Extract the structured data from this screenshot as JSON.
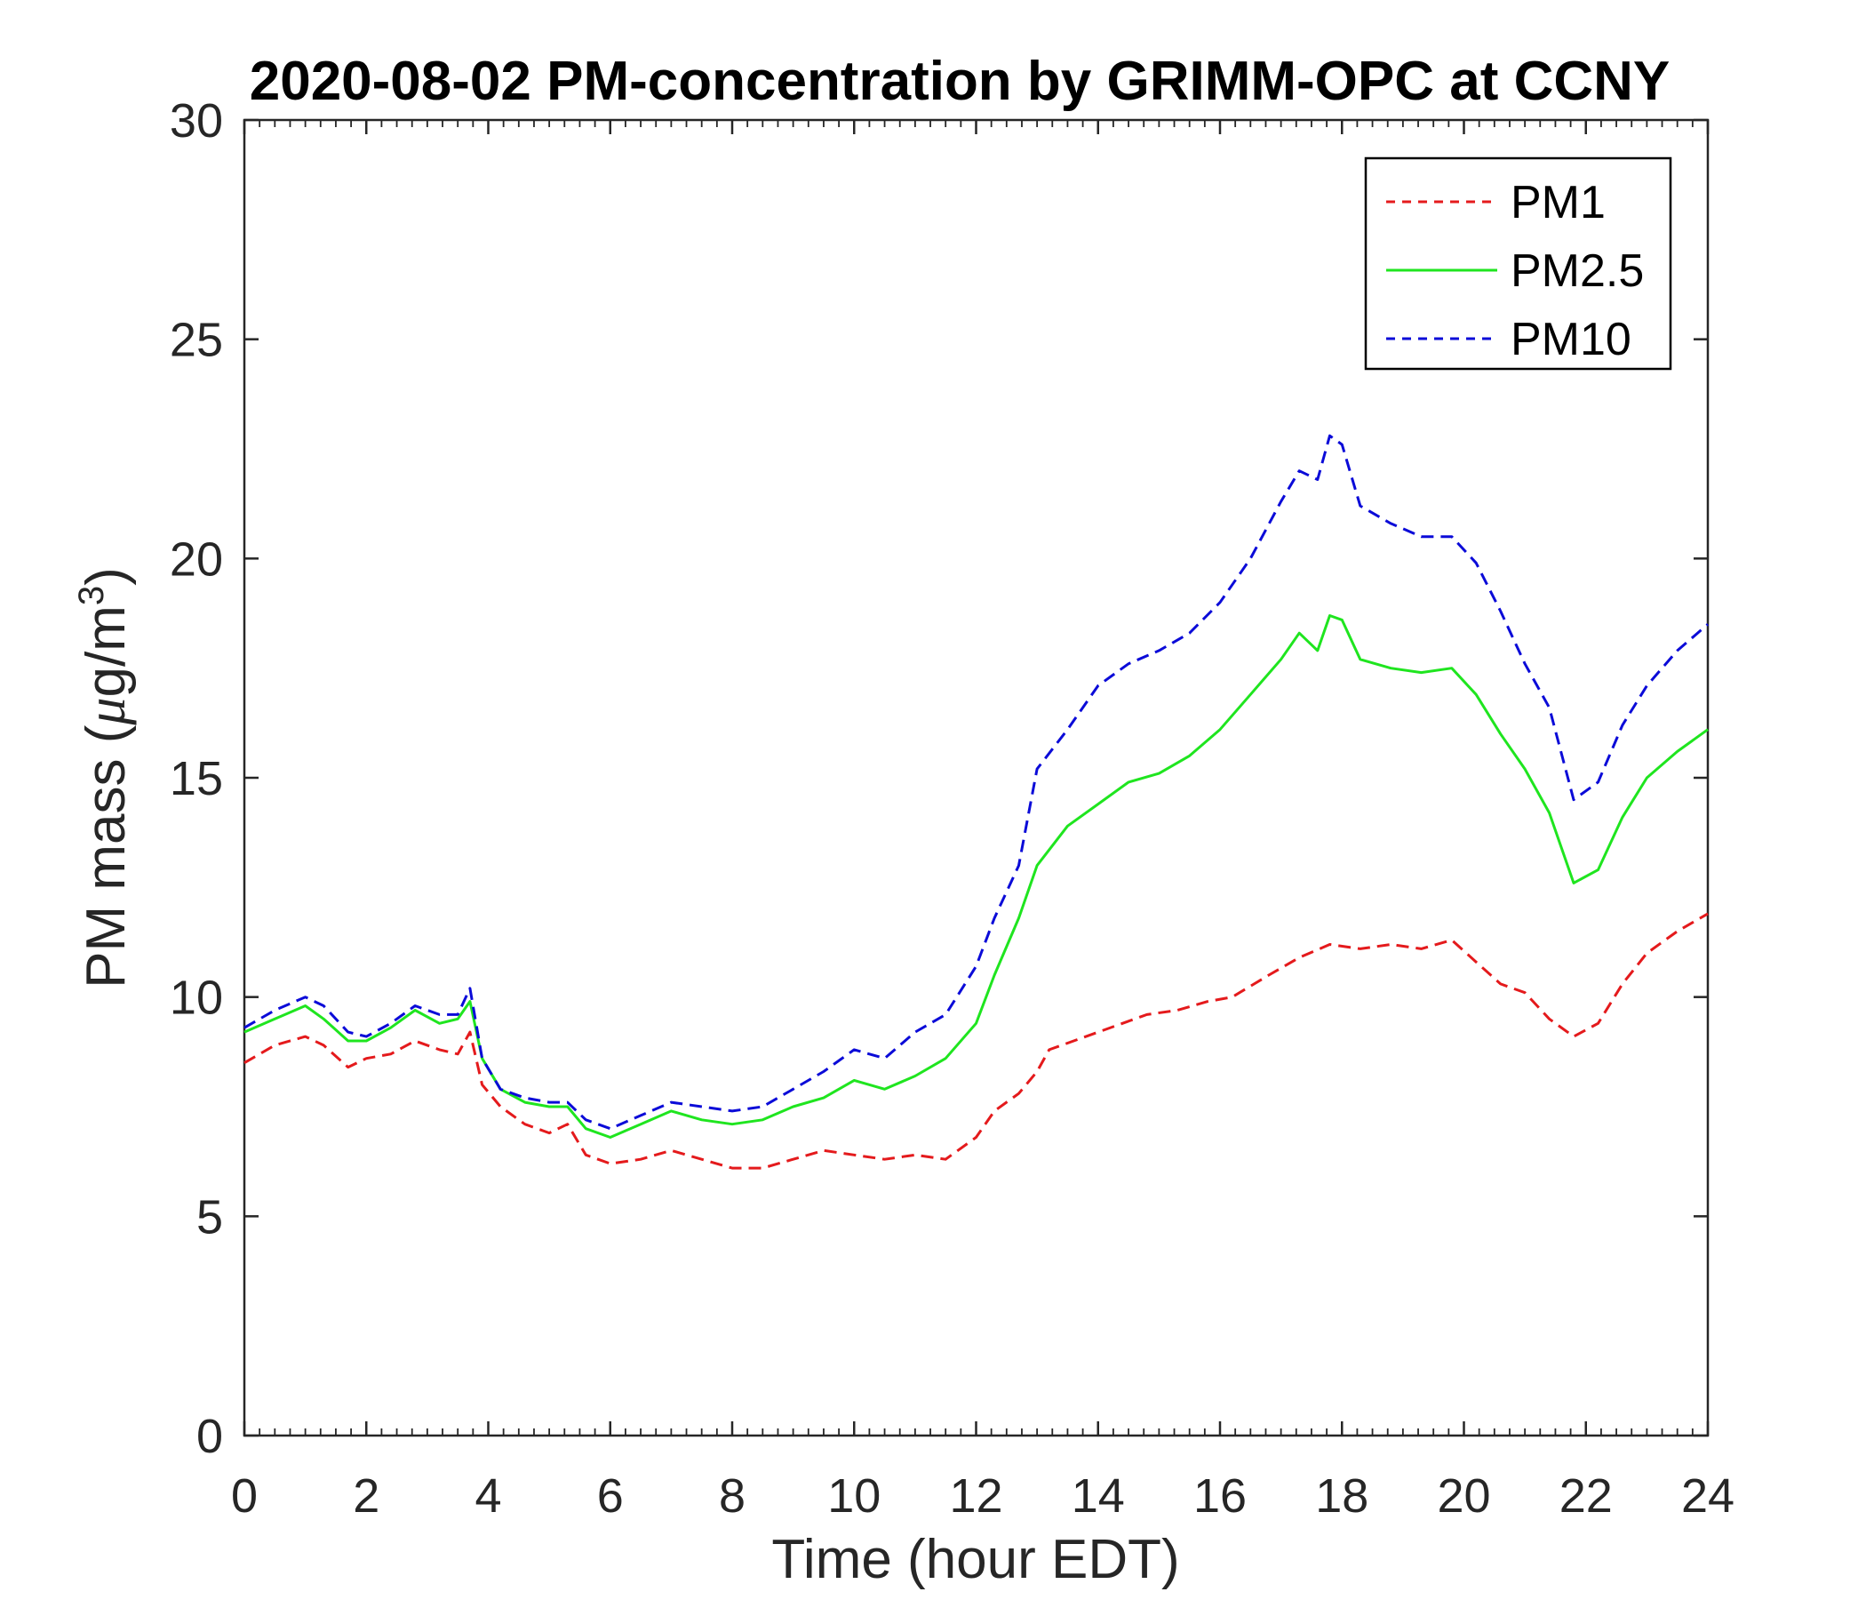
{
  "chart_data": {
    "type": "line",
    "title": "2020-08-02 PM-concentration by GRIMM-OPC at CCNY",
    "xlabel": "Time (hour EDT)",
    "ylabel_prefix": "PM mass (",
    "ylabel_mu": "μ",
    "ylabel_unit": "g/m",
    "ylabel_exp": "3",
    "ylabel_suffix": ")",
    "xlim": [
      0,
      24
    ],
    "ylim": [
      0,
      30
    ],
    "xticks": [
      0,
      2,
      4,
      6,
      8,
      10,
      12,
      14,
      16,
      18,
      20,
      22,
      24
    ],
    "yticks": [
      0,
      5,
      10,
      15,
      20,
      25,
      30
    ],
    "legend_position": "top-right",
    "grid": false,
    "series": [
      {
        "name": "PM1",
        "color": "#e41a1c",
        "dash": "dashed",
        "x": [
          0,
          0.5,
          1,
          1.3,
          1.7,
          2,
          2.4,
          2.8,
          3.2,
          3.5,
          3.7,
          3.9,
          4.2,
          4.6,
          5,
          5.3,
          5.6,
          6,
          6.5,
          7,
          7.5,
          8,
          8.5,
          9,
          9.5,
          10,
          10.5,
          11,
          11.5,
          12,
          12.3,
          12.7,
          13.0,
          13.2,
          14.8,
          15.3,
          15.8,
          16.2,
          16.8,
          17.3,
          17.8,
          18.3,
          18.8,
          19.3,
          19.8,
          20.2,
          20.6,
          21.0,
          21.4,
          21.8,
          22.2,
          22.6,
          23.0,
          23.5,
          24
        ],
        "y": [
          8.5,
          8.9,
          9.1,
          8.9,
          8.4,
          8.6,
          8.7,
          9.0,
          8.8,
          8.7,
          9.2,
          8.0,
          7.5,
          7.1,
          6.9,
          7.1,
          6.4,
          6.2,
          6.3,
          6.5,
          6.3,
          6.1,
          6.1,
          6.3,
          6.5,
          6.4,
          6.3,
          6.4,
          6.3,
          6.8,
          7.4,
          7.8,
          8.3,
          8.8,
          9.6,
          9.7,
          9.9,
          10.0,
          10.5,
          10.9,
          11.2,
          11.1,
          11.2,
          11.1,
          11.3,
          10.8,
          10.3,
          10.1,
          9.5,
          9.1,
          9.4,
          10.3,
          11.0,
          11.5,
          11.9
        ]
      },
      {
        "name": "PM2.5",
        "color": "#1fe51f",
        "dash": "solid",
        "x": [
          0,
          0.5,
          1,
          1.3,
          1.7,
          2,
          2.4,
          2.8,
          3.2,
          3.5,
          3.7,
          3.9,
          4.2,
          4.6,
          5,
          5.3,
          5.6,
          6,
          6.5,
          7,
          7.5,
          8,
          8.5,
          9,
          9.5,
          10,
          10.5,
          11,
          11.5,
          12,
          12.3,
          12.7,
          13.0,
          13.5,
          14,
          14.5,
          15,
          15.5,
          16,
          16.5,
          17,
          17.3,
          17.6,
          17.8,
          18.0,
          18.3,
          18.8,
          19.3,
          19.8,
          20.2,
          20.6,
          21.0,
          21.4,
          21.8,
          22.2,
          22.6,
          23.0,
          23.5,
          24
        ],
        "y": [
          9.2,
          9.5,
          9.8,
          9.5,
          9.0,
          9.0,
          9.3,
          9.7,
          9.4,
          9.5,
          9.9,
          8.6,
          7.9,
          7.6,
          7.5,
          7.5,
          7.0,
          6.8,
          7.1,
          7.4,
          7.2,
          7.1,
          7.2,
          7.5,
          7.7,
          8.1,
          7.9,
          8.2,
          8.6,
          9.4,
          10.5,
          11.8,
          13.0,
          13.9,
          14.4,
          14.9,
          15.1,
          15.5,
          16.1,
          16.9,
          17.7,
          18.3,
          17.9,
          18.7,
          18.6,
          17.7,
          17.5,
          17.4,
          17.5,
          16.9,
          16.0,
          15.2,
          14.2,
          12.6,
          12.9,
          14.1,
          15.0,
          15.6,
          16.1
        ]
      },
      {
        "name": "PM10",
        "color": "#0b0bd8",
        "dash": "dashed",
        "x": [
          0,
          0.5,
          1,
          1.3,
          1.7,
          2,
          2.4,
          2.8,
          3.2,
          3.5,
          3.7,
          3.9,
          4.2,
          4.6,
          5,
          5.3,
          5.6,
          6,
          6.5,
          7,
          7.5,
          8,
          8.5,
          9,
          9.5,
          10,
          10.5,
          11,
          11.5,
          12,
          12.3,
          12.7,
          13.0,
          13.5,
          14,
          14.5,
          15,
          15.5,
          16,
          16.5,
          17,
          17.3,
          17.6,
          17.8,
          18.0,
          18.3,
          18.8,
          19.3,
          19.8,
          20.2,
          20.6,
          21.0,
          21.4,
          21.8,
          22.2,
          22.6,
          23.0,
          23.5,
          24
        ],
        "y": [
          9.3,
          9.7,
          10.0,
          9.8,
          9.2,
          9.1,
          9.4,
          9.8,
          9.6,
          9.6,
          10.2,
          8.6,
          7.9,
          7.7,
          7.6,
          7.6,
          7.2,
          7.0,
          7.3,
          7.6,
          7.5,
          7.4,
          7.5,
          7.9,
          8.3,
          8.8,
          8.6,
          9.2,
          9.6,
          10.7,
          11.8,
          13.0,
          15.2,
          16.1,
          17.1,
          17.6,
          17.9,
          18.3,
          19.0,
          20.0,
          21.3,
          22.0,
          21.8,
          22.8,
          22.6,
          21.2,
          20.8,
          20.5,
          20.5,
          19.9,
          18.8,
          17.6,
          16.6,
          14.5,
          14.9,
          16.2,
          17.1,
          17.9,
          18.5
        ]
      }
    ]
  }
}
